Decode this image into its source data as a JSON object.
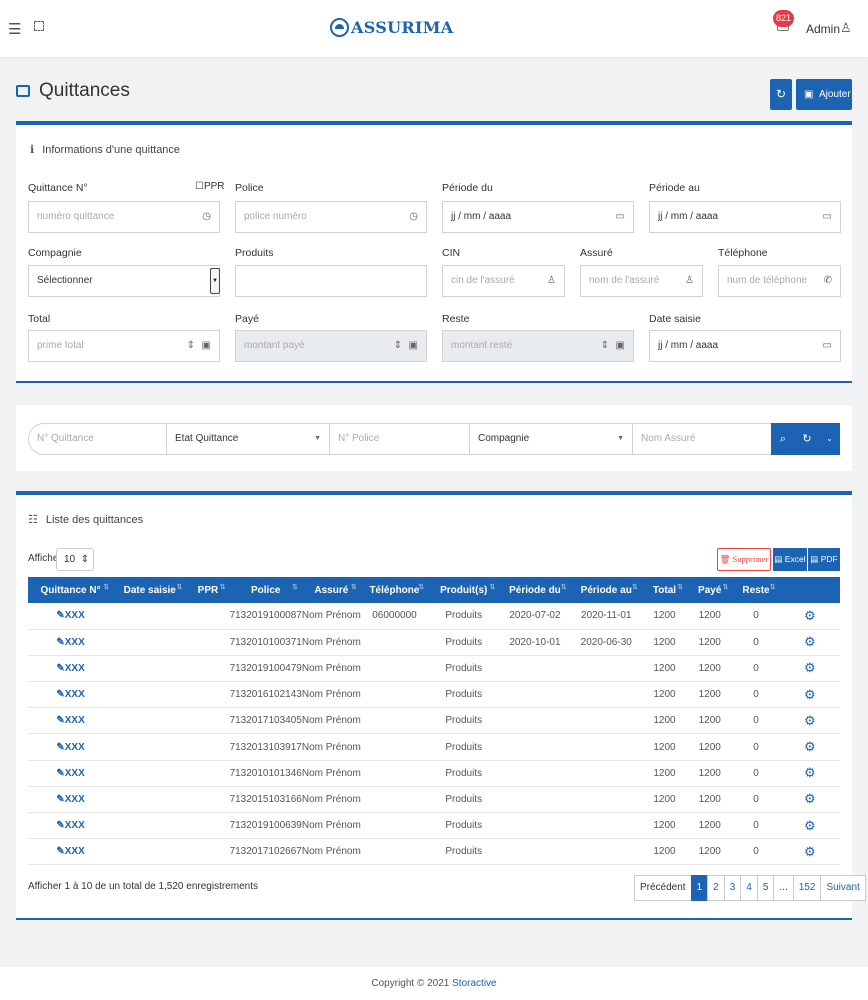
{
  "app": {
    "brand": "ASSURIMA",
    "notifications": "821",
    "user": "Admin"
  },
  "page": {
    "title": "Quittances",
    "add_label": "Ajouter"
  },
  "form": {
    "title": "Informations d'une quittance",
    "ppr": "PPR",
    "quittance": {
      "label": "Quittance N°",
      "placeholder": "numéro quittance"
    },
    "police": {
      "label": "Police",
      "placeholder": "police numéro"
    },
    "periode_du": {
      "label": "Période du",
      "value": "jj / mm / aaaa"
    },
    "periode_au": {
      "label": "Période au",
      "value": "jj / mm / aaaa"
    },
    "compagnie": {
      "label": "Compagnie",
      "value": "Sélectionner"
    },
    "produits": {
      "label": "Produits"
    },
    "cin": {
      "label": "CIN",
      "placeholder": "cin de l'assuré"
    },
    "assure": {
      "label": "Assuré",
      "placeholder": "nom de l'assuré"
    },
    "telephone": {
      "label": "Téléphone",
      "placeholder": "num de téléphone"
    },
    "total": {
      "label": "Total",
      "placeholder": "prime total"
    },
    "paye": {
      "label": "Payé",
      "placeholder": "montant payé"
    },
    "reste": {
      "label": "Reste",
      "placeholder": "montant resté"
    },
    "date_saisie": {
      "label": "Date saisie",
      "value": "jj / mm / aaaa"
    }
  },
  "search": {
    "quittance": "N° Quittance",
    "etat": "Etat Quittance",
    "police": "N° Police",
    "compagnie": "Compagnie",
    "assure": "Nom Assuré"
  },
  "list": {
    "title": "Liste des quittances",
    "show_label": "Afficher",
    "page_length": "10",
    "delete_label": "Supprimer",
    "excel_label": "Excel",
    "pdf_label": "PDF",
    "columns": [
      "Quittance N°",
      "Date saisie",
      "PPR",
      "Police",
      "Assuré",
      "Téléphone",
      "Produit(s)",
      "Période du",
      "Période au",
      "Total",
      "Payé",
      "Reste",
      ""
    ],
    "rows": [
      [
        "XXX",
        "",
        "",
        "7132019100087",
        "Nom Prénom",
        "06000000",
        "Produits",
        "2020-07-02",
        "2020-11-01",
        "1200",
        "1200",
        "0"
      ],
      [
        "XXX",
        "",
        "",
        "7132010100371",
        "Nom Prénom",
        "",
        "Produits",
        "2020-10-01",
        "2020-06-30",
        "1200",
        "1200",
        "0"
      ],
      [
        "XXX",
        "",
        "",
        "7132019100479",
        "Nom Prénom",
        "",
        "Produits",
        "",
        "",
        "1200",
        "1200",
        "0"
      ],
      [
        "XXX",
        "",
        "",
        "7132016102143",
        "Nom Prénom",
        "",
        "Produits",
        "",
        "",
        "1200",
        "1200",
        "0"
      ],
      [
        "XXX",
        "",
        "",
        "7132017103405",
        "Nom Prénom",
        "",
        "Produits",
        "",
        "",
        "1200",
        "1200",
        "0"
      ],
      [
        "XXX",
        "",
        "",
        "7132013103917",
        "Nom Prénom",
        "",
        "Produits",
        "",
        "",
        "1200",
        "1200",
        "0"
      ],
      [
        "XXX",
        "",
        "",
        "7132010101346",
        "Nom Prénom",
        "",
        "Produits",
        "",
        "",
        "1200",
        "1200",
        "0"
      ],
      [
        "XXX",
        "",
        "",
        "7132015103166",
        "Nom Prénom",
        "",
        "Produits",
        "",
        "",
        "1200",
        "1200",
        "0"
      ],
      [
        "XXX",
        "",
        "",
        "7132019100639",
        "Nom Prénom",
        "",
        "Produits",
        "",
        "",
        "1200",
        "1200",
        "0"
      ],
      [
        "XXX",
        "",
        "",
        "7132017102667",
        "Nom Prénom",
        "",
        "Produits",
        "",
        "",
        "1200",
        "1200",
        "0"
      ]
    ],
    "info": "Afficher 1 à 10 de un total de 1,520 enregistrements",
    "pagination": {
      "prev": "Précédent",
      "pages": [
        "1",
        "2",
        "3",
        "4",
        "5"
      ],
      "ellipsis": "...",
      "last": "152",
      "next": "Suivant"
    }
  },
  "footer": {
    "text": "Copyright © 2021",
    "link": "Storactive"
  }
}
